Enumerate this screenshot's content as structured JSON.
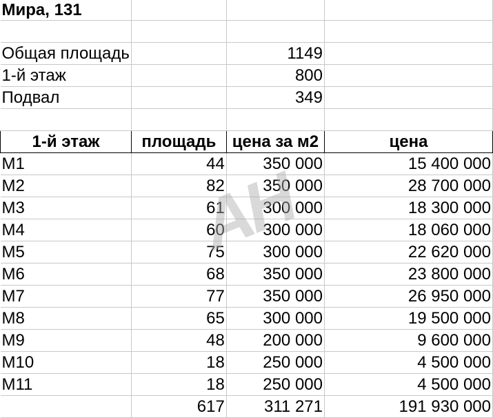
{
  "title": "Мира, 131",
  "summary": [
    {
      "label": "Общая площадь",
      "value": "1149"
    },
    {
      "label": "1-й этаж",
      "value": "800"
    },
    {
      "label": "Подвал",
      "value": "349"
    }
  ],
  "headers": [
    "1-й этаж",
    "площадь",
    "цена за м2",
    "цена"
  ],
  "rows": [
    [
      "M1",
      "44",
      "350 000",
      "15 400 000"
    ],
    [
      "M2",
      "82",
      "350 000",
      "28 700 000"
    ],
    [
      "M3",
      "61",
      "300 000",
      "18 300 000"
    ],
    [
      "M4",
      "60",
      "300 000",
      "18 060 000"
    ],
    [
      "M5",
      "75",
      "300 000",
      "22 620 000"
    ],
    [
      "M6",
      "68",
      "350 000",
      "23 800 000"
    ],
    [
      "M7",
      "77",
      "350 000",
      "26 950 000"
    ],
    [
      "M8",
      "65",
      "300 000",
      "19 500 000"
    ],
    [
      "M9",
      "48",
      "200 000",
      "9 600 000"
    ],
    [
      "M10",
      "18",
      "250 000",
      "4 500 000"
    ],
    [
      "M11",
      "18",
      "250 000",
      "4 500 000"
    ]
  ],
  "totals": [
    "",
    "617",
    "311 271",
    "191 930 000"
  ],
  "watermark": "АН"
}
